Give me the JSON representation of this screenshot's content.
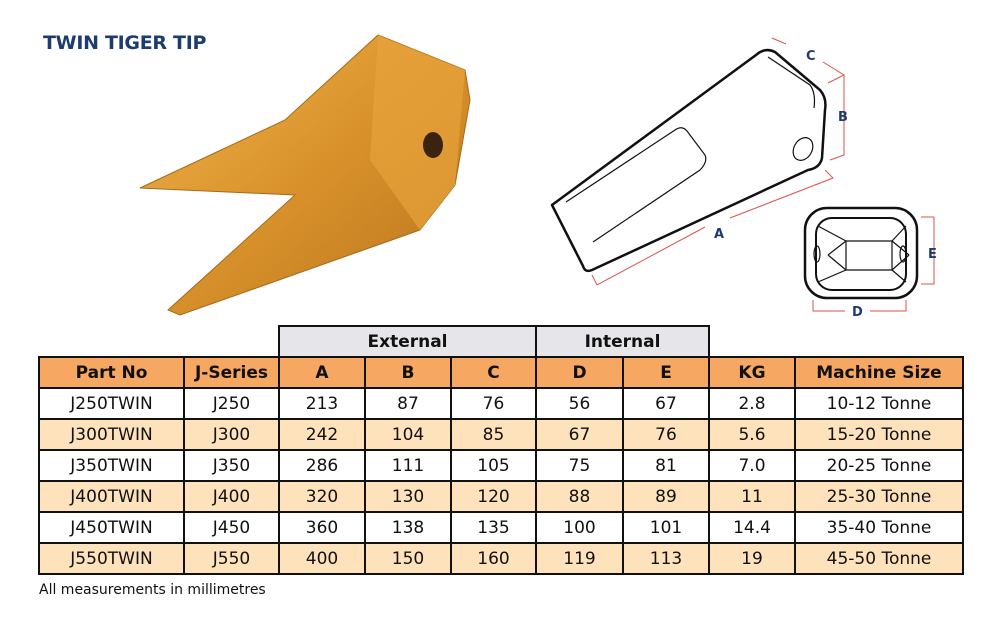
{
  "title": "TWIN TIGER TIP",
  "diagram_labels": {
    "a": "A",
    "b": "B",
    "c": "C",
    "d": "D",
    "e": "E"
  },
  "colors": {
    "title": "#1d3c6e",
    "header": "#f6a862",
    "alt_row": "#fde2bb",
    "group_header": "#e6e6ea",
    "dimension_lines": "#d9534f"
  },
  "table": {
    "groups": {
      "external": "External",
      "internal": "Internal"
    },
    "headers": [
      "Part No",
      "J-Series",
      "A",
      "B",
      "C",
      "D",
      "E",
      "KG",
      "Machine Size"
    ],
    "rows": [
      [
        "J250TWIN",
        "J250",
        "213",
        "87",
        "76",
        "56",
        "67",
        "2.8",
        "10-12 Tonne"
      ],
      [
        "J300TWIN",
        "J300",
        "242",
        "104",
        "85",
        "67",
        "76",
        "5.6",
        "15-20 Tonne"
      ],
      [
        "J350TWIN",
        "J350",
        "286",
        "111",
        "105",
        "75",
        "81",
        "7.0",
        "20-25 Tonne"
      ],
      [
        "J400TWIN",
        "J400",
        "320",
        "130",
        "120",
        "88",
        "89",
        "11",
        "25-30 Tonne"
      ],
      [
        "J450TWIN",
        "J450",
        "360",
        "138",
        "135",
        "100",
        "101",
        "14.4",
        "35-40 Tonne"
      ],
      [
        "J550TWIN",
        "J550",
        "400",
        "150",
        "160",
        "119",
        "113",
        "19",
        "45-50 Tonne"
      ]
    ]
  },
  "note": "All measurements in millimetres"
}
